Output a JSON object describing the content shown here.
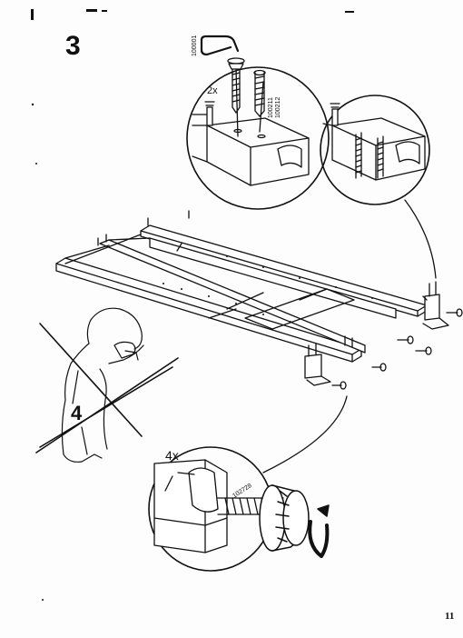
{
  "step": {
    "number": "3"
  },
  "page": {
    "number": "11"
  },
  "top_detail": {
    "parts": [
      "100001",
      "100211",
      "100212"
    ],
    "quantity": "2x"
  },
  "bottom_detail": {
    "part": "102728",
    "quantity": "4x"
  },
  "warning_figure": {
    "label": "4"
  }
}
